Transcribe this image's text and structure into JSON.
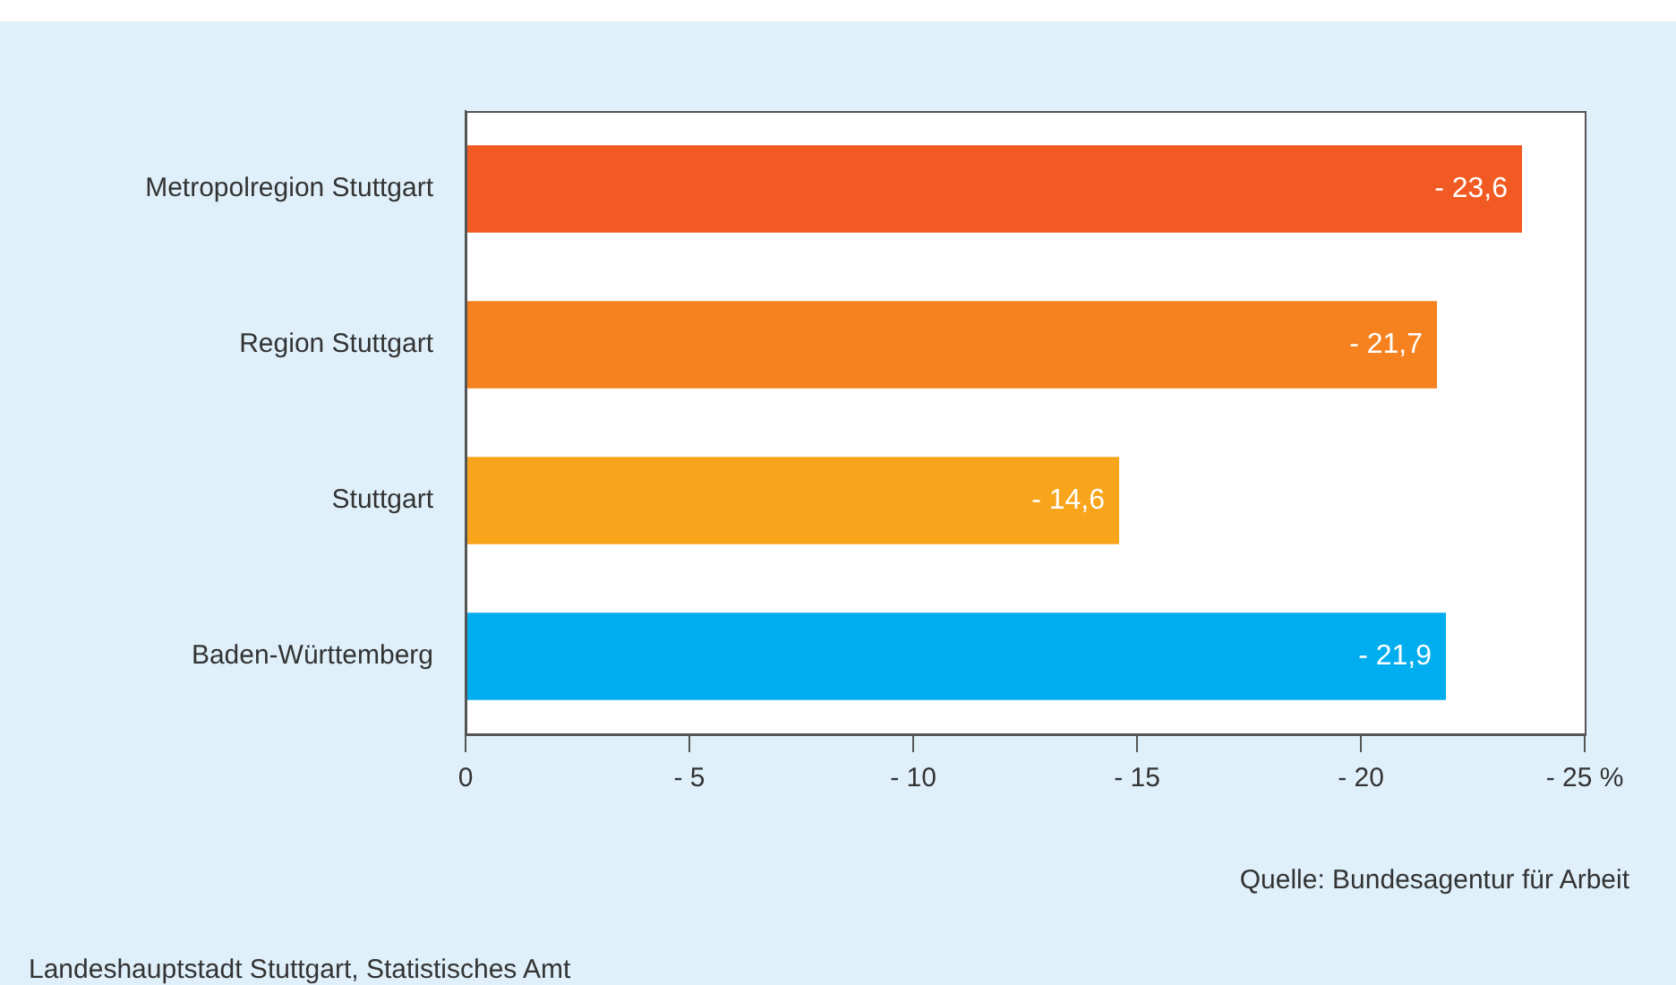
{
  "chart_data": {
    "type": "bar",
    "orientation": "horizontal",
    "categories": [
      "Metropolregion Stuttgart",
      "Region Stuttgart",
      "Stuttgart",
      "Baden-Württemberg"
    ],
    "values": [
      -23.6,
      -21.7,
      -14.6,
      -21.9
    ],
    "colors": [
      "#f15a22",
      "#f5821f",
      "#f8a51b",
      "#00aeef"
    ],
    "value_labels": [
      "- 23,6",
      "- 21,7",
      "- 14,6",
      "- 21,9"
    ],
    "xlim": [
      0,
      -25
    ],
    "xticks": [
      0,
      {
        "value": -5,
        "label": "- 5"
      },
      {
        "value": -10,
        "label": "- 10"
      },
      {
        "value": -15,
        "label": "- 15"
      },
      {
        "value": -20,
        "label": "- 20"
      },
      {
        "value": -25,
        "label": "- 25 %"
      }
    ],
    "grid": false,
    "legend": false,
    "annotations": [
      "Quelle: Bundesagentur für Arbeit",
      "Landeshauptstadt Stuttgart, Statistisches Amt"
    ]
  }
}
